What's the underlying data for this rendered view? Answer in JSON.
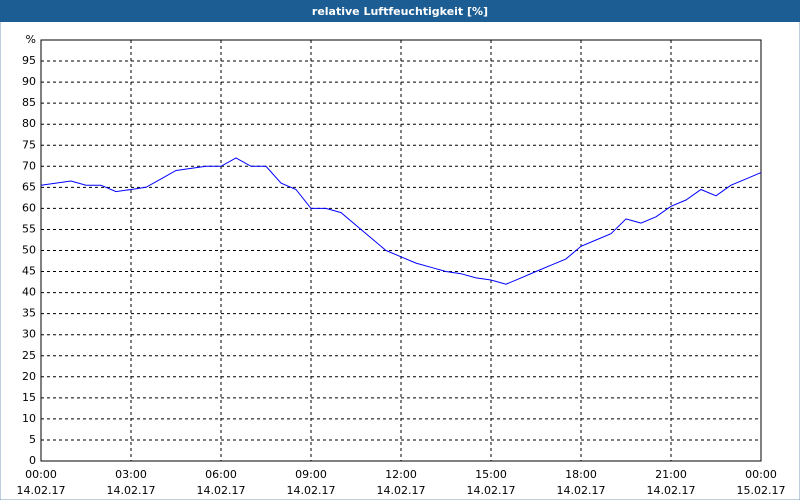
{
  "chart_data": {
    "type": "line",
    "title": "relative Luftfeuchtigkeit [%]",
    "x": [
      "2017-02-14T00:00",
      "2017-02-14T00:30",
      "2017-02-14T01:00",
      "2017-02-14T01:30",
      "2017-02-14T02:00",
      "2017-02-14T02:30",
      "2017-02-14T03:00",
      "2017-02-14T03:30",
      "2017-02-14T04:00",
      "2017-02-14T04:30",
      "2017-02-14T05:00",
      "2017-02-14T05:30",
      "2017-02-14T06:00",
      "2017-02-14T06:30",
      "2017-02-14T07:00",
      "2017-02-14T07:30",
      "2017-02-14T08:00",
      "2017-02-14T08:30",
      "2017-02-14T09:00",
      "2017-02-14T09:30",
      "2017-02-14T10:00",
      "2017-02-14T10:30",
      "2017-02-14T11:00",
      "2017-02-14T11:30",
      "2017-02-14T12:00",
      "2017-02-14T12:30",
      "2017-02-14T13:00",
      "2017-02-14T13:30",
      "2017-02-14T14:00",
      "2017-02-14T14:30",
      "2017-02-14T15:00",
      "2017-02-14T15:30",
      "2017-02-14T16:00",
      "2017-02-14T16:30",
      "2017-02-14T17:00",
      "2017-02-14T17:30",
      "2017-02-14T18:00",
      "2017-02-14T18:30",
      "2017-02-14T19:00",
      "2017-02-14T19:30",
      "2017-02-14T20:00",
      "2017-02-14T20:30",
      "2017-02-14T21:00",
      "2017-02-14T21:30",
      "2017-02-14T22:00",
      "2017-02-14T22:30",
      "2017-02-14T23:00",
      "2017-02-14T23:30",
      "2017-02-15T00:00"
    ],
    "series": [
      {
        "color": "#0000ff",
        "values": [
          65.5,
          66,
          66.5,
          65.5,
          65.5,
          64,
          64.5,
          65,
          67,
          69,
          69.5,
          70,
          70,
          72,
          70,
          70,
          66,
          64.5,
          60,
          60,
          59,
          56,
          53,
          50,
          48.5,
          47,
          46,
          45,
          44.5,
          43.5,
          43,
          42,
          43.5,
          45,
          46.5,
          48,
          51,
          52.5,
          54,
          57.5,
          56.5,
          58,
          60.5,
          62,
          64.5,
          63,
          65.5,
          67,
          68.5
        ]
      }
    ],
    "xlim": [
      "2017-02-14T00:00",
      "2017-02-15T00:00"
    ],
    "xticks": [
      {
        "value": "2017-02-14T00:00",
        "label": [
          "00:00",
          "14.02.17"
        ]
      },
      {
        "value": "2017-02-14T03:00",
        "label": [
          "03:00",
          "14.02.17"
        ]
      },
      {
        "value": "2017-02-14T06:00",
        "label": [
          "06:00",
          "14.02.17"
        ]
      },
      {
        "value": "2017-02-14T09:00",
        "label": [
          "09:00",
          "14.02.17"
        ]
      },
      {
        "value": "2017-02-14T12:00",
        "label": [
          "12:00",
          "14.02.17"
        ]
      },
      {
        "value": "2017-02-14T15:00",
        "label": [
          "15:00",
          "14.02.17"
        ]
      },
      {
        "value": "2017-02-14T18:00",
        "label": [
          "18:00",
          "14.02.17"
        ]
      },
      {
        "value": "2017-02-14T21:00",
        "label": [
          "21:00",
          "14.02.17"
        ]
      },
      {
        "value": "2017-02-15T00:00",
        "label": [
          "00:00",
          "15.02.17"
        ]
      }
    ],
    "ylim": [
      0,
      100
    ],
    "yticks": [
      0,
      5,
      10,
      15,
      20,
      25,
      30,
      35,
      40,
      45,
      50,
      55,
      60,
      65,
      70,
      75,
      80,
      85,
      90,
      95,
      {
        "value": 100,
        "label": "%"
      }
    ],
    "grid": true
  }
}
